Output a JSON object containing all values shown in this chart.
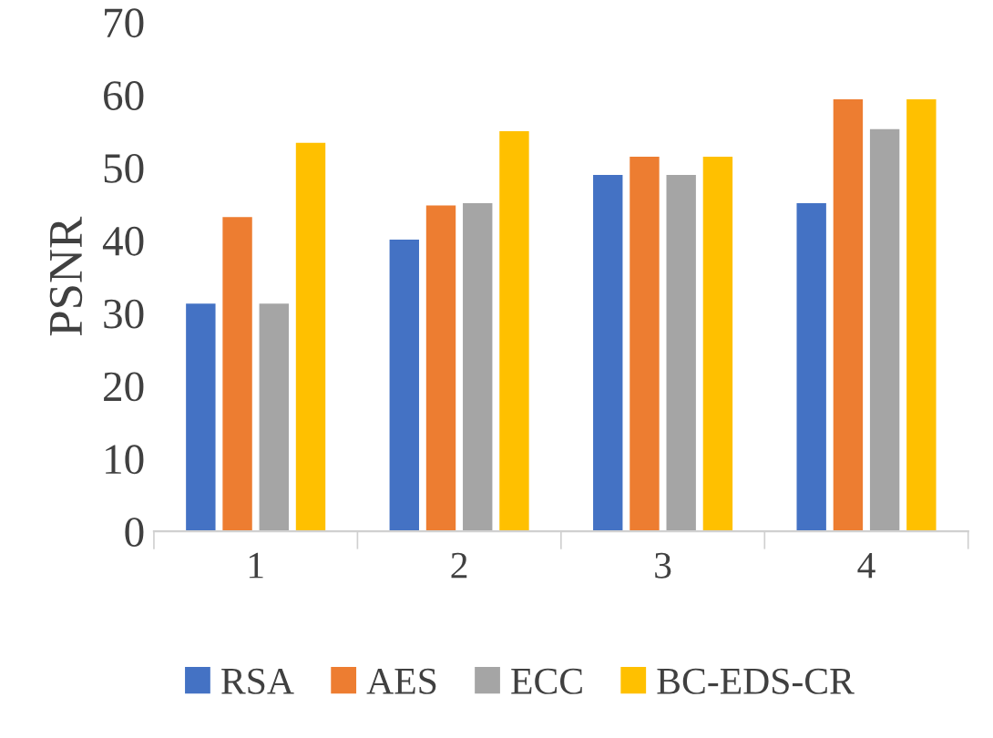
{
  "chart_data": {
    "type": "bar",
    "ylabel": "PSNR",
    "categories": [
      "1",
      "2",
      "3",
      "4"
    ],
    "series": [
      {
        "name": "RSA",
        "color": "#4472c4",
        "values": [
          31.3,
          40.1,
          49.0,
          45.1
        ]
      },
      {
        "name": "AES",
        "color": "#ed7d31",
        "values": [
          43.2,
          44.8,
          51.5,
          59.4
        ]
      },
      {
        "name": "ECC",
        "color": "#a5a5a5",
        "values": [
          31.3,
          45.1,
          49.0,
          55.3
        ]
      },
      {
        "name": "BC-EDS-CR",
        "color": "#ffc000",
        "values": [
          53.4,
          55.0,
          51.5,
          59.4
        ]
      }
    ],
    "ylim": [
      0,
      70
    ],
    "yticks": [
      0,
      10,
      20,
      30,
      40,
      50,
      60,
      70
    ],
    "grid": false,
    "legend": "bottom"
  }
}
